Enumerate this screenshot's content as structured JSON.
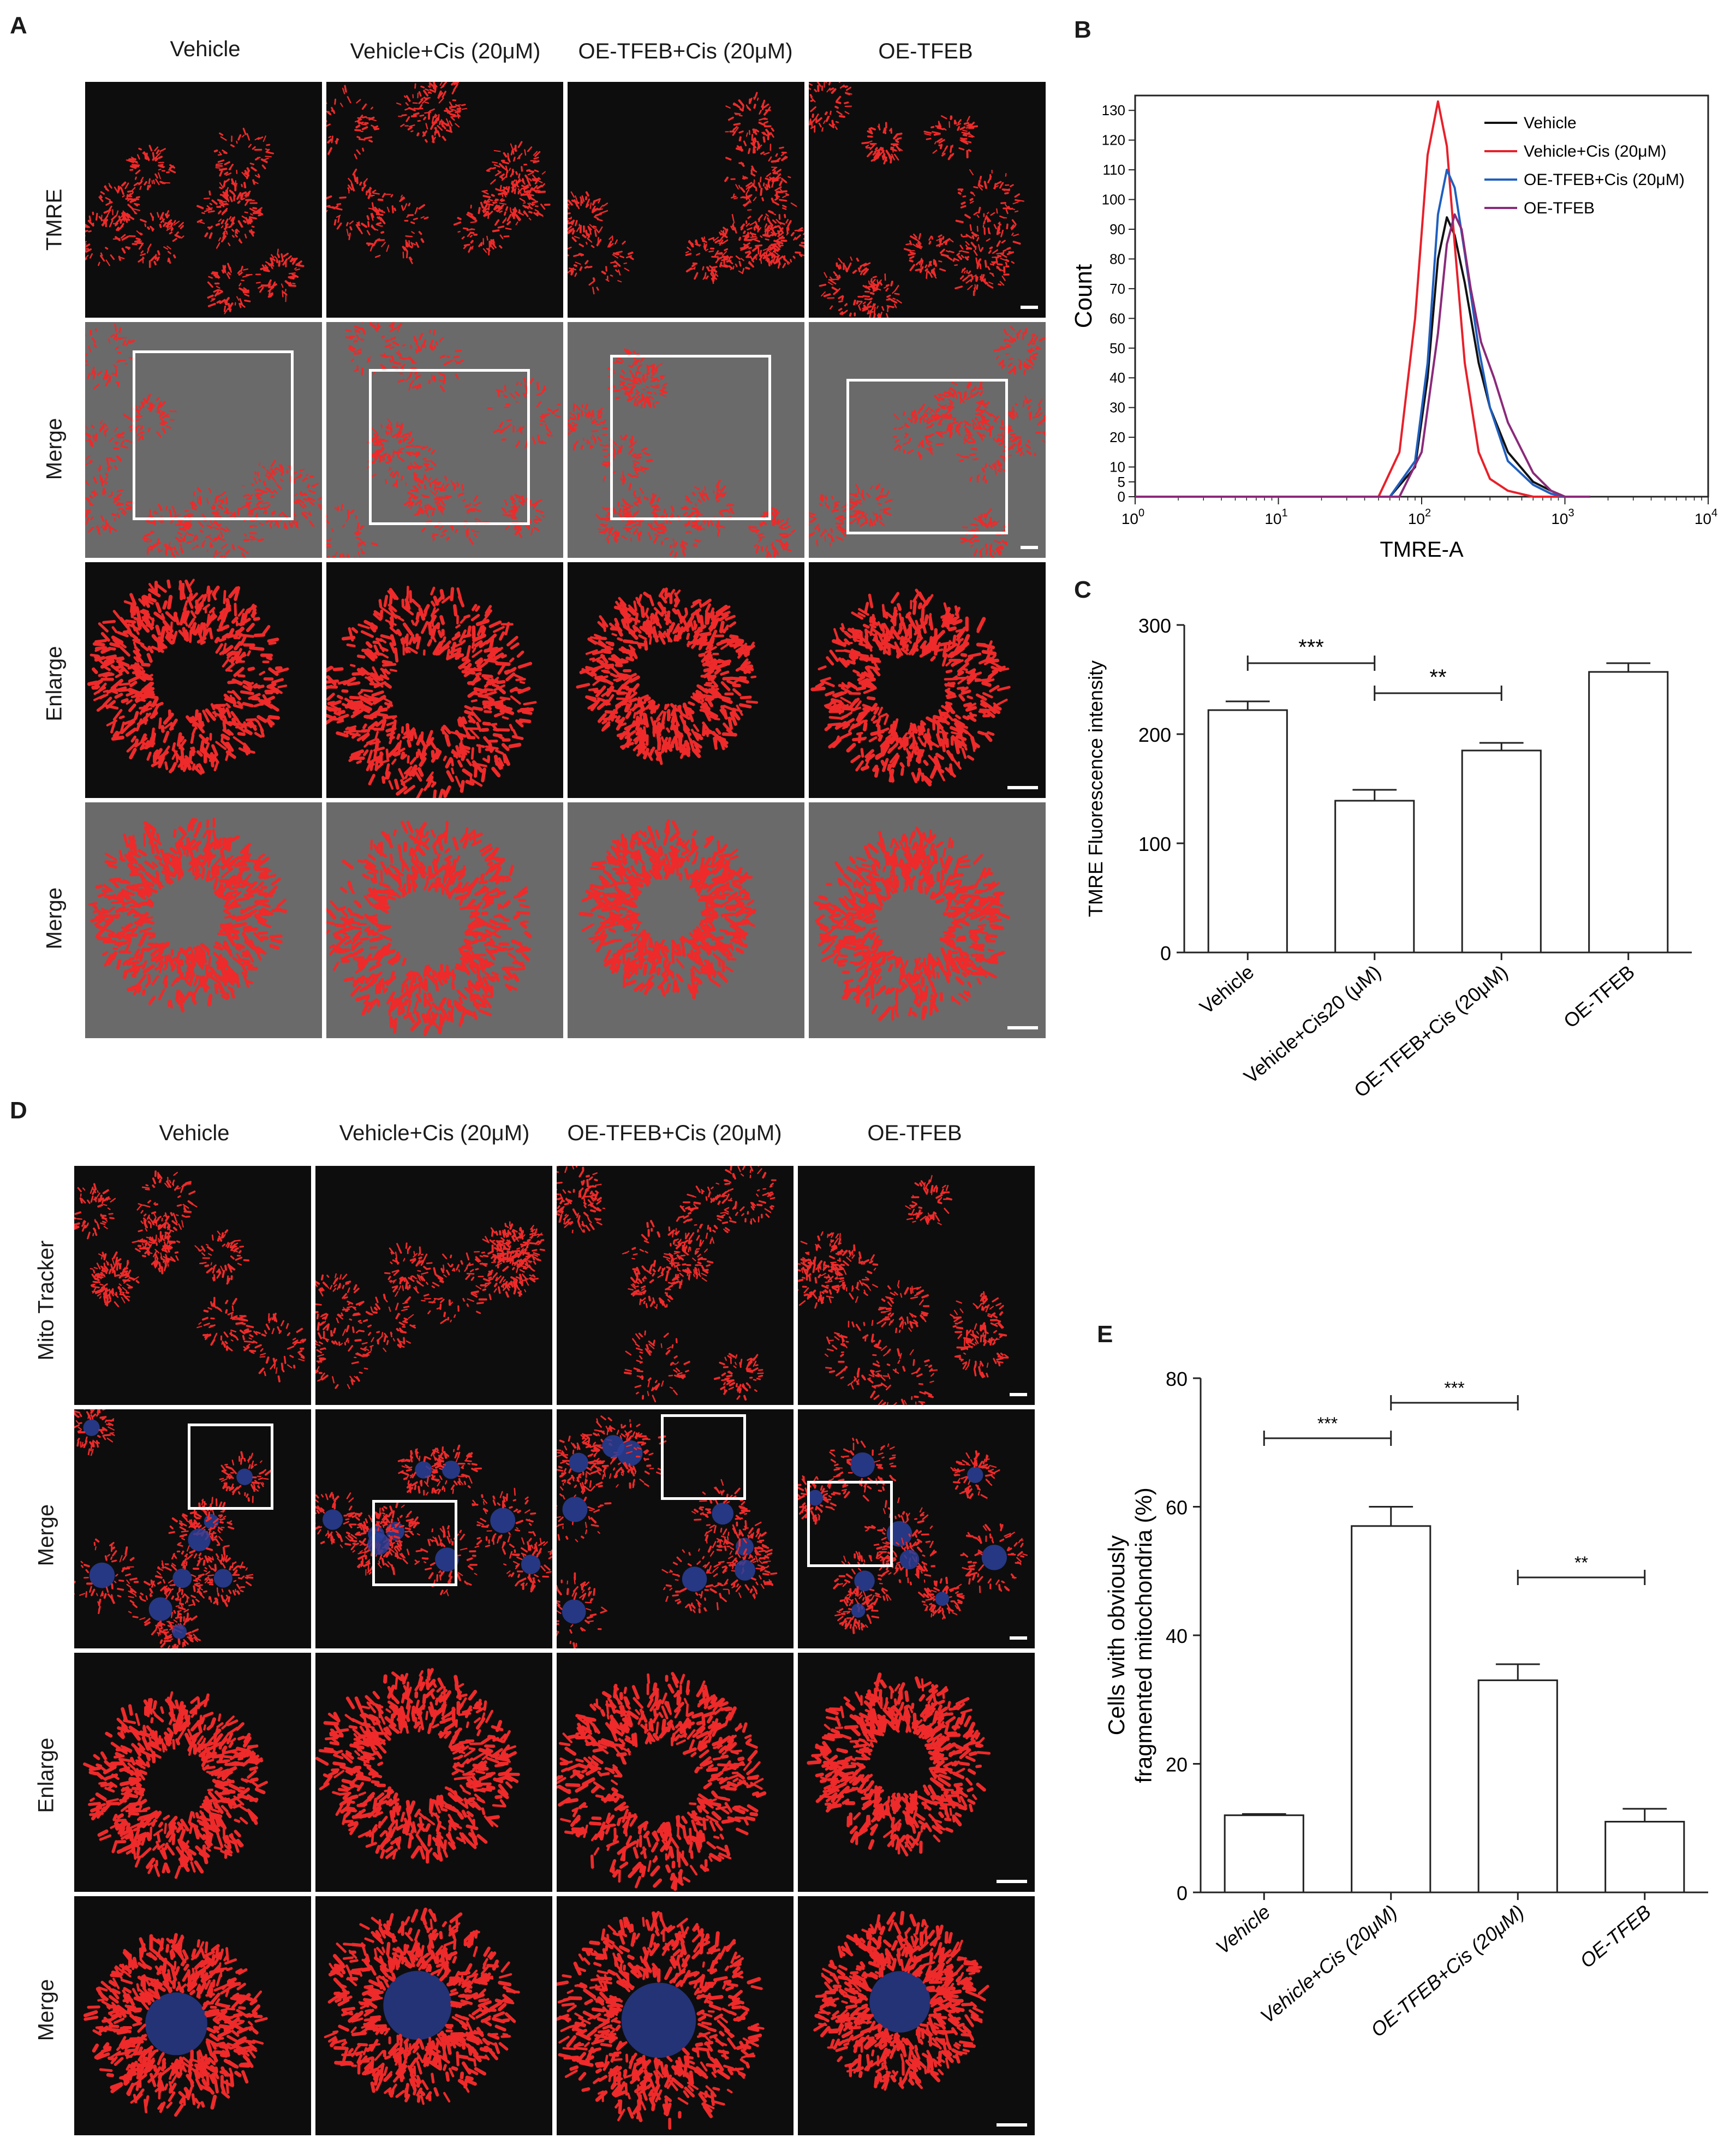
{
  "panel_a": {
    "label": "A",
    "columns": [
      "Vehicle",
      "Vehicle+Cis (20μM)",
      "OE-TFEB+Cis (20μM)",
      "OE-TFEB"
    ],
    "rows": [
      "TMRE",
      "Merge",
      "Enlarge",
      "Merge"
    ]
  },
  "panel_b": {
    "label": "B",
    "ylabel": "Count",
    "xlabel": "TMRE-A",
    "yticks": [
      "0",
      "5",
      "10",
      "20",
      "30",
      "40",
      "50",
      "60",
      "70",
      "80",
      "90",
      "100",
      "110",
      "120",
      "130"
    ],
    "xticks": [
      {
        "b": "10",
        "e": "0"
      },
      {
        "b": "10",
        "e": "1"
      },
      {
        "b": "10",
        "e": "2"
      },
      {
        "b": "10",
        "e": "3"
      },
      {
        "b": "10",
        "e": "4"
      }
    ],
    "legend": [
      "Vehicle",
      "Vehicle+Cis (20μM)",
      "OE-TFEB+Cis (20μM)",
      "OE-TFEB"
    ],
    "colors": [
      "#111111",
      "#e8202a",
      "#1f5fbf",
      "#8a2a7a"
    ]
  },
  "panel_c": {
    "label": "C",
    "significance": [
      "***",
      "**"
    ]
  },
  "panel_d": {
    "label": "D",
    "columns": [
      "Vehicle",
      "Vehicle+Cis (20μM)",
      "OE-TFEB+Cis (20μM)",
      "OE-TFEB"
    ],
    "rows": [
      "Mito Tracker",
      "Merge",
      "Enlarge",
      "Merge"
    ]
  },
  "panel_e": {
    "label": "E",
    "significance": [
      "***",
      "***",
      "**"
    ]
  },
  "chart_data": [
    {
      "type": "line",
      "panel": "B",
      "ylabel": "Count",
      "xlabel": "TMRE-A",
      "x_scale": "log",
      "xlim": [
        1,
        10000
      ],
      "ylim": [
        0,
        135
      ],
      "series": [
        {
          "name": "Vehicle",
          "color": "#111111",
          "x": [
            1,
            60,
            90,
            110,
            130,
            150,
            170,
            200,
            250,
            300,
            400,
            600,
            800,
            1000,
            1500
          ],
          "y": [
            0,
            0,
            10,
            40,
            80,
            94,
            88,
            72,
            45,
            30,
            15,
            5,
            2,
            0,
            0
          ]
        },
        {
          "name": "Vehicle+Cis (20μM)",
          "color": "#e8202a",
          "x": [
            1,
            50,
            70,
            90,
            110,
            130,
            150,
            170,
            200,
            250,
            300,
            400,
            600,
            1000
          ],
          "y": [
            0,
            0,
            15,
            60,
            115,
            133,
            118,
            85,
            45,
            15,
            6,
            2,
            0,
            0
          ]
        },
        {
          "name": "OE-TFEB+Cis (20μM)",
          "color": "#1f5fbf",
          "x": [
            1,
            60,
            90,
            110,
            130,
            150,
            170,
            200,
            250,
            300,
            400,
            600,
            800,
            1000,
            1500
          ],
          "y": [
            0,
            0,
            12,
            45,
            95,
            110,
            104,
            82,
            50,
            30,
            12,
            4,
            1,
            0,
            0
          ]
        },
        {
          "name": "OE-TFEB",
          "color": "#8a2a7a",
          "x": [
            1,
            70,
            100,
            130,
            150,
            170,
            190,
            220,
            260,
            320,
            400,
            600,
            800,
            1000,
            1500
          ],
          "y": [
            0,
            0,
            15,
            55,
            85,
            95,
            90,
            70,
            52,
            40,
            25,
            8,
            2,
            0,
            0
          ]
        }
      ]
    },
    {
      "type": "bar",
      "panel": "C",
      "ylabel": "TMRE Fluorescence intensity",
      "categories": [
        "Vehicle",
        "Vehicle+Cis20 (μM)",
        "OE-TFEB+Cis (20μM)",
        "OE-TFEB"
      ],
      "values": [
        222,
        139,
        185,
        257
      ],
      "errors": [
        8,
        10,
        7,
        8
      ],
      "ylim": [
        0,
        300
      ],
      "yticks": [
        0,
        100,
        200,
        300
      ],
      "comparisons": [
        {
          "from": 0,
          "to": 1,
          "label": "***"
        },
        {
          "from": 1,
          "to": 2,
          "label": "**"
        }
      ]
    },
    {
      "type": "bar",
      "panel": "E",
      "ylabel": "Cells with obviously fragmented mitochondria (%)",
      "categories": [
        "Vehicle",
        "Vehicle+Cis (20μM)",
        "OE-TFEB+Cis (20μM)",
        "OE-TFEB"
      ],
      "values": [
        12,
        57,
        33,
        11
      ],
      "errors": [
        0.2,
        3,
        2.5,
        2
      ],
      "ylim": [
        0,
        80
      ],
      "yticks": [
        0,
        20,
        40,
        60,
        80
      ],
      "comparisons": [
        {
          "from": 0,
          "to": 1,
          "label": "***"
        },
        {
          "from": 1,
          "to": 2,
          "label": "***"
        },
        {
          "from": 2,
          "to": 3,
          "label": "**"
        }
      ]
    }
  ]
}
